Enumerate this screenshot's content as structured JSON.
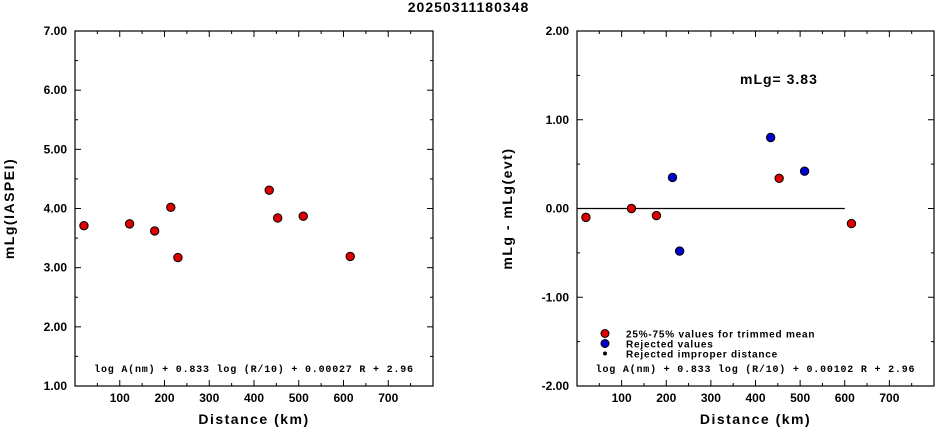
{
  "title": "20250311180348",
  "colors": {
    "accepted": "#dd0000",
    "rejected": "#0000cc",
    "improper": "#000000"
  },
  "chart_data": [
    {
      "type": "scatter",
      "xlabel": "Distance (km)",
      "ylabel": "mLg(IASPEI)",
      "xlim": [
        0,
        800
      ],
      "ylim": [
        1.0,
        7.0
      ],
      "xticks": [
        "100",
        "200",
        "300",
        "400",
        "500",
        "600",
        "700"
      ],
      "yticks": [
        "1.00",
        "2.00",
        "3.00",
        "4.00",
        "5.00",
        "6.00",
        "7.00"
      ],
      "formula": "log A(nm) + 0.833 log (R/10) + 0.00027 R + 2.96",
      "points": [
        {
          "x": 20,
          "y": 3.71,
          "status": "accepted"
        },
        {
          "x": 122,
          "y": 3.74,
          "status": "accepted"
        },
        {
          "x": 178,
          "y": 3.62,
          "status": "accepted"
        },
        {
          "x": 214,
          "y": 4.02,
          "status": "accepted"
        },
        {
          "x": 230,
          "y": 3.17,
          "status": "accepted"
        },
        {
          "x": 434,
          "y": 4.31,
          "status": "accepted"
        },
        {
          "x": 453,
          "y": 3.84,
          "status": "accepted"
        },
        {
          "x": 510,
          "y": 3.87,
          "status": "accepted"
        },
        {
          "x": 615,
          "y": 3.19,
          "status": "accepted"
        }
      ]
    },
    {
      "type": "scatter",
      "xlabel": "Distance (km)",
      "ylabel": "mLg - mLg(evt)",
      "xlim": [
        0,
        800
      ],
      "ylim": [
        -2.0,
        2.0
      ],
      "xticks": [
        "100",
        "200",
        "300",
        "400",
        "500",
        "600",
        "700"
      ],
      "yticks": [
        "-2.00",
        "-1.00",
        "0.00",
        "1.00",
        "2.00"
      ],
      "annotation": "mLg= 3.83",
      "reference_line": {
        "y": 0.0,
        "x_range": [
          0,
          600
        ]
      },
      "formula": "log A(nm) + 0.833 log (R/10) + 0.00102 R  + 2.96",
      "legend_entries": [
        {
          "label": "25%-75% values for trimmed mean",
          "status": "accepted"
        },
        {
          "label": "Rejected values",
          "status": "rejected"
        },
        {
          "label": "Rejected improper distance",
          "status": "improper"
        }
      ],
      "points": [
        {
          "x": 20,
          "y": -0.1,
          "status": "accepted"
        },
        {
          "x": 122,
          "y": 0.0,
          "status": "accepted"
        },
        {
          "x": 178,
          "y": -0.08,
          "status": "accepted"
        },
        {
          "x": 214,
          "y": 0.35,
          "status": "rejected"
        },
        {
          "x": 230,
          "y": -0.48,
          "status": "rejected"
        },
        {
          "x": 434,
          "y": 0.8,
          "status": "rejected"
        },
        {
          "x": 453,
          "y": 0.34,
          "status": "accepted"
        },
        {
          "x": 510,
          "y": 0.42,
          "status": "rejected"
        },
        {
          "x": 615,
          "y": -0.17,
          "status": "accepted"
        }
      ]
    }
  ]
}
